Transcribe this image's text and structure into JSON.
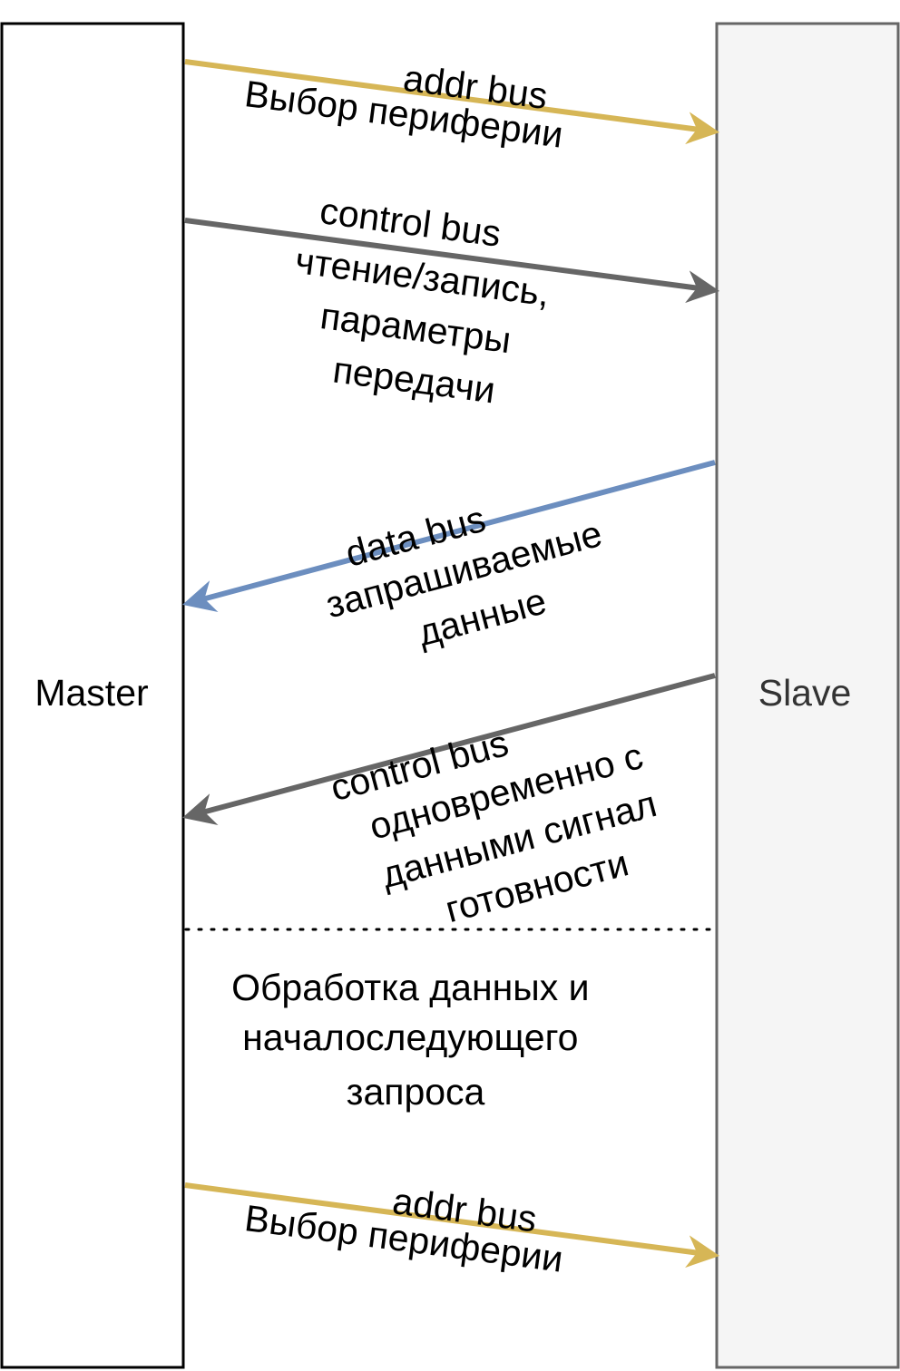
{
  "participants": {
    "master": {
      "label": "Master",
      "fill": "#ffffff",
      "stroke": "#000000",
      "text_color": "#000000"
    },
    "slave": {
      "label": "Slave",
      "fill": "#f5f5f5",
      "stroke": "#666666",
      "text_color": "#333333"
    }
  },
  "messages": [
    {
      "id": "addr-1",
      "direction": "master-to-slave",
      "color": "#d6b656",
      "bus": "addr bus",
      "lines": [
        "Выбор периферии"
      ]
    },
    {
      "id": "ctrl-1",
      "direction": "master-to-slave",
      "color": "#666666",
      "bus": "control bus",
      "lines": [
        "чтение/запись,",
        "параметры",
        "передачи"
      ]
    },
    {
      "id": "data-1",
      "direction": "slave-to-master",
      "color": "#6c8ebf",
      "bus": "data bus",
      "lines": [
        "запрашиваемые",
        "данные"
      ]
    },
    {
      "id": "ctrl-2",
      "direction": "slave-to-master",
      "color": "#666666",
      "bus": "control bus",
      "lines": [
        "одновременно с",
        "данными сигнал",
        "готовности"
      ]
    },
    {
      "id": "addr-2",
      "direction": "master-to-slave",
      "color": "#d6b656",
      "bus": "addr bus",
      "lines": [
        "Выбор периферии"
      ]
    }
  ],
  "processing_note": {
    "lines": [
      "Обработка данных и",
      "началоследующего",
      "запроса"
    ]
  }
}
